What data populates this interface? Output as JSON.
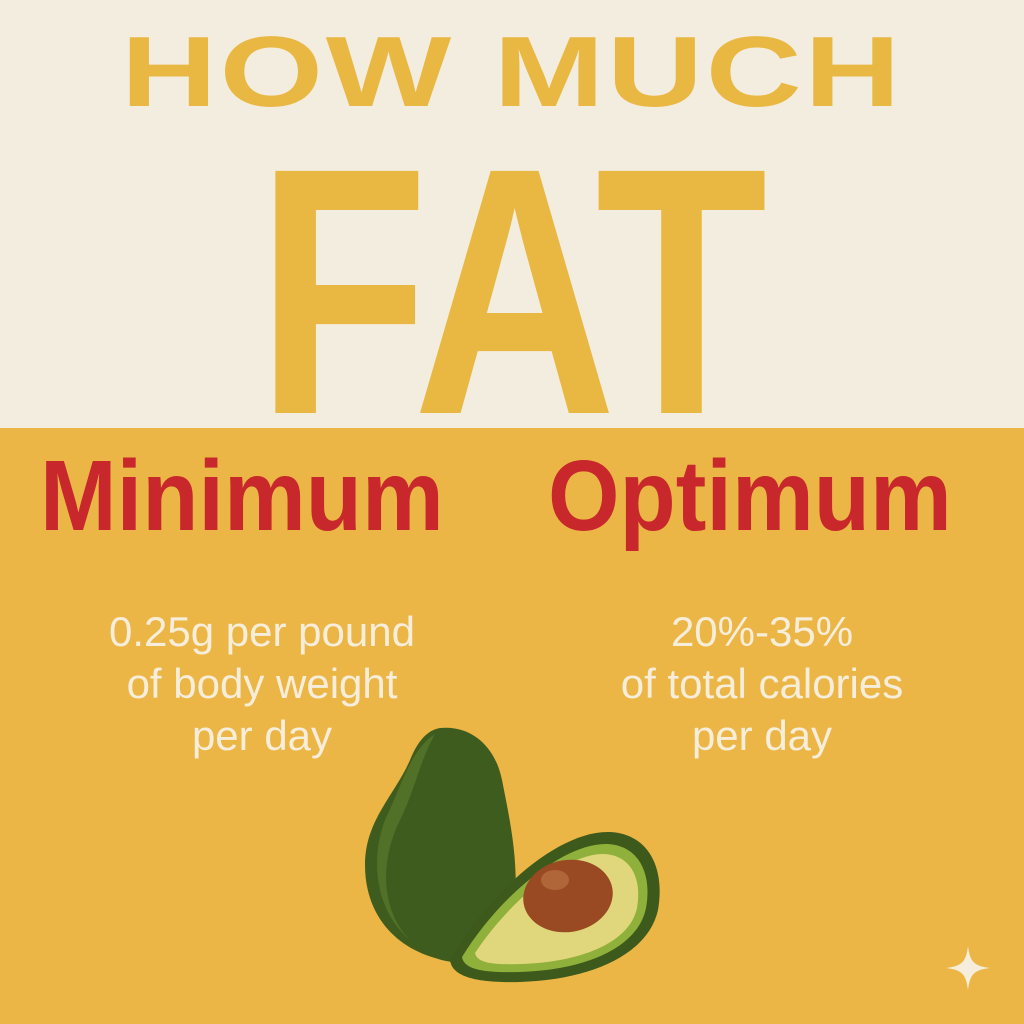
{
  "title": {
    "line1": "HOW MUCH",
    "line2": "FAT"
  },
  "columns": [
    {
      "heading": "Minimum",
      "lines": [
        "0.25g per pound",
        "of body weight",
        "per day"
      ]
    },
    {
      "heading": "Optimum",
      "lines": [
        "20%-35%",
        "of total calories",
        "per day"
      ]
    }
  ],
  "colors": {
    "cream": "#f3ede0",
    "yellow": "#ebb646",
    "title": "#e9b843",
    "heading_red": "#c8282c",
    "text": "#f6eedb"
  },
  "icons": [
    "avocado-illustration",
    "sparkle-icon"
  ]
}
